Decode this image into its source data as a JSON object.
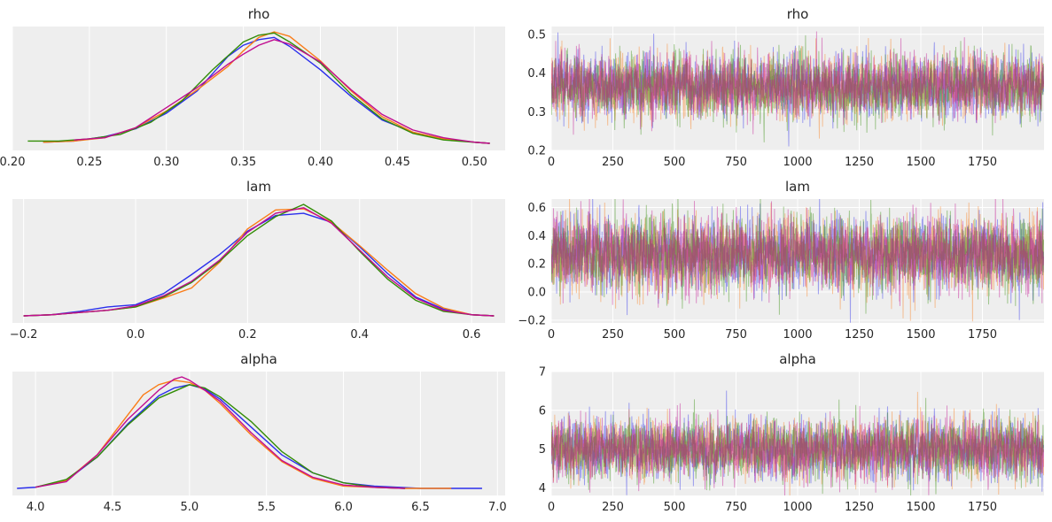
{
  "chain_colors": [
    "#2a2eec",
    "#fa7c17",
    "#328c06",
    "#c10c90"
  ],
  "chart_data": [
    {
      "type": "line",
      "kind": "density",
      "title": "rho",
      "xlim": [
        0.2,
        0.52
      ],
      "xticks": [
        0.2,
        0.25,
        0.3,
        0.35,
        0.4,
        0.45,
        0.5
      ],
      "xtick_labels": [
        "0.20",
        "0.25",
        "0.30",
        "0.35",
        "0.40",
        "0.45",
        "0.50"
      ],
      "grid": true,
      "series": [
        {
          "x": [
            0.22,
            0.24,
            0.26,
            0.28,
            0.3,
            0.32,
            0.34,
            0.35,
            0.36,
            0.37,
            0.38,
            0.4,
            0.42,
            0.44,
            0.46,
            0.48,
            0.5,
            0.51
          ],
          "y": [
            0.01,
            0.02,
            0.06,
            0.13,
            0.27,
            0.47,
            0.78,
            0.88,
            0.93,
            0.95,
            0.87,
            0.66,
            0.42,
            0.21,
            0.1,
            0.04,
            0.01,
            0.0
          ]
        },
        {
          "x": [
            0.22,
            0.24,
            0.26,
            0.28,
            0.3,
            0.32,
            0.34,
            0.35,
            0.36,
            0.37,
            0.38,
            0.4,
            0.42,
            0.44,
            0.46,
            0.48,
            0.5,
            0.51
          ],
          "y": [
            0.01,
            0.02,
            0.05,
            0.14,
            0.29,
            0.48,
            0.69,
            0.83,
            0.95,
            1.0,
            0.96,
            0.74,
            0.47,
            0.24,
            0.1,
            0.04,
            0.01,
            0.0
          ]
        },
        {
          "x": [
            0.21,
            0.23,
            0.25,
            0.27,
            0.29,
            0.31,
            0.33,
            0.35,
            0.36,
            0.37,
            0.38,
            0.4,
            0.42,
            0.44,
            0.46,
            0.48,
            0.5,
            0.51
          ],
          "y": [
            0.02,
            0.02,
            0.04,
            0.08,
            0.19,
            0.38,
            0.66,
            0.91,
            0.97,
            0.99,
            0.91,
            0.72,
            0.44,
            0.22,
            0.09,
            0.03,
            0.01,
            0.0
          ]
        },
        {
          "x": [
            0.24,
            0.26,
            0.28,
            0.3,
            0.32,
            0.34,
            0.35,
            0.36,
            0.37,
            0.38,
            0.4,
            0.42,
            0.44,
            0.46,
            0.48,
            0.5,
            0.51
          ],
          "y": [
            0.03,
            0.05,
            0.14,
            0.32,
            0.5,
            0.71,
            0.8,
            0.88,
            0.93,
            0.89,
            0.73,
            0.48,
            0.26,
            0.12,
            0.05,
            0.01,
            0.0
          ]
        }
      ]
    },
    {
      "type": "line",
      "kind": "trace",
      "title": "rho",
      "xlim": [
        0,
        2000
      ],
      "ylim": [
        0.2,
        0.52
      ],
      "xticks": [
        0,
        250,
        500,
        750,
        1000,
        1250,
        1500,
        1750
      ],
      "xtick_labels": [
        "0",
        "250",
        "500",
        "750",
        "1000",
        "1250",
        "1500",
        "1750"
      ],
      "yticks": [
        0.2,
        0.3,
        0.4,
        0.5
      ],
      "ytick_labels": [
        "0.2",
        "0.3",
        "0.4",
        "0.5"
      ],
      "draws": 2000,
      "mean": 0.365,
      "sd": 0.04,
      "grid": true
    },
    {
      "type": "line",
      "kind": "density",
      "title": "lam",
      "xlim": [
        -0.22,
        0.66
      ],
      "xticks": [
        -0.2,
        0.0,
        0.2,
        0.4,
        0.6
      ],
      "xtick_labels": [
        "−0.2",
        "0.0",
        "0.2",
        "0.4",
        "0.6"
      ],
      "grid": true,
      "series": [
        {
          "x": [
            -0.2,
            -0.15,
            -0.1,
            -0.05,
            0.0,
            0.05,
            0.1,
            0.15,
            0.2,
            0.25,
            0.3,
            0.35,
            0.4,
            0.45,
            0.5,
            0.55,
            0.6,
            0.64
          ],
          "y": [
            0.0,
            0.01,
            0.04,
            0.08,
            0.1,
            0.2,
            0.37,
            0.55,
            0.76,
            0.9,
            0.92,
            0.84,
            0.62,
            0.38,
            0.17,
            0.06,
            0.01,
            0.0
          ]
        },
        {
          "x": [
            -0.2,
            -0.15,
            -0.1,
            -0.05,
            0.0,
            0.05,
            0.1,
            0.15,
            0.2,
            0.25,
            0.3,
            0.35,
            0.4,
            0.45,
            0.5,
            0.55,
            0.6,
            0.64
          ],
          "y": [
            0.0,
            0.01,
            0.03,
            0.05,
            0.08,
            0.16,
            0.25,
            0.48,
            0.78,
            0.95,
            0.96,
            0.84,
            0.63,
            0.41,
            0.2,
            0.07,
            0.01,
            0.0
          ]
        },
        {
          "x": [
            -0.2,
            -0.15,
            -0.1,
            -0.05,
            0.0,
            0.05,
            0.1,
            0.15,
            0.2,
            0.25,
            0.3,
            0.35,
            0.4,
            0.45,
            0.5,
            0.55,
            0.6,
            0.64
          ],
          "y": [
            0.0,
            0.01,
            0.03,
            0.05,
            0.08,
            0.17,
            0.3,
            0.49,
            0.72,
            0.89,
            1.0,
            0.85,
            0.58,
            0.33,
            0.14,
            0.04,
            0.01,
            0.0
          ]
        },
        {
          "x": [
            -0.2,
            -0.15,
            -0.1,
            -0.05,
            0.0,
            0.05,
            0.1,
            0.15,
            0.2,
            0.25,
            0.3,
            0.35,
            0.4,
            0.45,
            0.5,
            0.55,
            0.6,
            0.64
          ],
          "y": [
            0.0,
            0.01,
            0.03,
            0.05,
            0.09,
            0.18,
            0.31,
            0.5,
            0.75,
            0.92,
            0.97,
            0.83,
            0.59,
            0.35,
            0.16,
            0.05,
            0.01,
            0.0
          ]
        }
      ]
    },
    {
      "type": "line",
      "kind": "trace",
      "title": "lam",
      "xlim": [
        0,
        2000
      ],
      "ylim": [
        -0.22,
        0.66
      ],
      "xticks": [
        0,
        250,
        500,
        750,
        1000,
        1250,
        1500,
        1750
      ],
      "xtick_labels": [
        "0",
        "250",
        "500",
        "750",
        "1000",
        "1250",
        "1500",
        "1750"
      ],
      "yticks": [
        -0.2,
        0.0,
        0.2,
        0.4,
        0.6
      ],
      "ytick_labels": [
        "−0.2",
        "0.0",
        "0.2",
        "0.4",
        "0.6"
      ],
      "draws": 2000,
      "mean": 0.27,
      "sd": 0.13,
      "grid": true
    },
    {
      "type": "line",
      "kind": "density",
      "title": "alpha",
      "xlim": [
        3.85,
        7.05
      ],
      "xticks": [
        4.0,
        4.5,
        5.0,
        5.5,
        6.0,
        6.5,
        7.0
      ],
      "xtick_labels": [
        "4.0",
        "4.5",
        "5.0",
        "5.5",
        "6.0",
        "6.5",
        "7.0"
      ],
      "grid": true,
      "series": [
        {
          "x": [
            3.88,
            4.0,
            4.2,
            4.4,
            4.6,
            4.8,
            4.9,
            5.0,
            5.1,
            5.2,
            5.4,
            5.6,
            5.8,
            6.0,
            6.2,
            6.5,
            6.9
          ],
          "y": [
            0.0,
            0.01,
            0.07,
            0.28,
            0.58,
            0.83,
            0.9,
            0.93,
            0.89,
            0.8,
            0.55,
            0.3,
            0.14,
            0.05,
            0.02,
            0.0,
            0.0
          ]
        },
        {
          "x": [
            4.0,
            4.2,
            4.4,
            4.6,
            4.7,
            4.8,
            4.9,
            5.0,
            5.1,
            5.2,
            5.4,
            5.6,
            5.8,
            6.0,
            6.2,
            6.4,
            6.7
          ],
          "y": [
            0.01,
            0.07,
            0.3,
            0.66,
            0.84,
            0.93,
            0.97,
            0.95,
            0.88,
            0.76,
            0.48,
            0.24,
            0.09,
            0.02,
            0.01,
            0.0,
            0.0
          ]
        },
        {
          "x": [
            4.0,
            4.2,
            4.4,
            4.6,
            4.8,
            5.0,
            5.1,
            5.2,
            5.4,
            5.6,
            5.8,
            6.0,
            6.2,
            6.4
          ],
          "y": [
            0.01,
            0.08,
            0.28,
            0.57,
            0.81,
            0.93,
            0.9,
            0.82,
            0.6,
            0.33,
            0.14,
            0.05,
            0.01,
            0.0
          ]
        },
        {
          "x": [
            4.0,
            4.2,
            4.4,
            4.6,
            4.8,
            4.9,
            4.95,
            5.0,
            5.1,
            5.2,
            5.4,
            5.6,
            5.8,
            6.0,
            6.2,
            6.4
          ],
          "y": [
            0.01,
            0.06,
            0.3,
            0.62,
            0.88,
            0.98,
            1.0,
            0.97,
            0.88,
            0.78,
            0.5,
            0.25,
            0.1,
            0.03,
            0.01,
            0.0
          ]
        }
      ]
    },
    {
      "type": "line",
      "kind": "trace",
      "title": "alpha",
      "xlim": [
        0,
        2000
      ],
      "ylim": [
        3.8,
        7.0
      ],
      "xticks": [
        0,
        250,
        500,
        750,
        1000,
        1250,
        1500,
        1750
      ],
      "xtick_labels": [
        "0",
        "250",
        "500",
        "750",
        "1000",
        "1250",
        "1500",
        "1750"
      ],
      "yticks": [
        4,
        5,
        6,
        7
      ],
      "ytick_labels": [
        "4",
        "5",
        "6",
        "7"
      ],
      "draws": 2000,
      "mean": 5.0,
      "sd": 0.38,
      "grid": true
    }
  ]
}
